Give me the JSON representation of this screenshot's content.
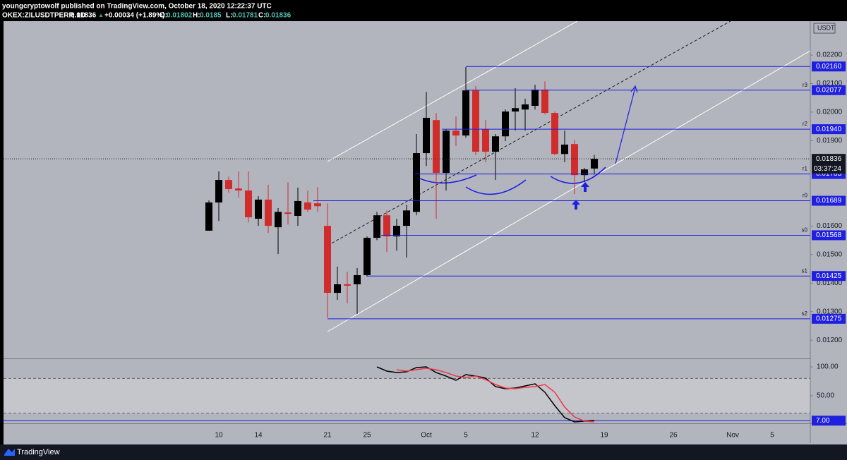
{
  "header": {
    "publisher": "youngcryptowolf published on TradingView.com, October 18, 2020 12:22:37 UTC",
    "symbol": "OKEX:ZILUSDTPERP, 1D",
    "change": "+0.00034 (+1.89%)",
    "ohlc_labels": [
      "O:",
      "H:",
      "L:",
      "C:"
    ]
  },
  "footer": {
    "brand": "TradingView"
  },
  "chart_data": [
    {
      "type": "candlestick",
      "currency": "USDT",
      "countdown": "03:37:24",
      "x": [
        "2020-09-09",
        "2020-09-10",
        "2020-09-11",
        "2020-09-12",
        "2020-09-13",
        "2020-09-14",
        "2020-09-15",
        "2020-09-16",
        "2020-09-17",
        "2020-09-18",
        "2020-09-19",
        "2020-09-20",
        "2020-09-21",
        "2020-09-22",
        "2020-09-23",
        "2020-09-24",
        "2020-09-25",
        "2020-09-26",
        "2020-09-27",
        "2020-09-28",
        "2020-09-29",
        "2020-09-30",
        "2020-10-01",
        "2020-10-02",
        "2020-10-03",
        "2020-10-04",
        "2020-10-05",
        "2020-10-06",
        "2020-10-07",
        "2020-10-08",
        "2020-10-09",
        "2020-10-10",
        "2020-10-11",
        "2020-10-12",
        "2020-10-13",
        "2020-10-14",
        "2020-10-15",
        "2020-10-16",
        "2020-10-17",
        "2020-10-18"
      ],
      "open": [
        0.01584,
        0.01683,
        0.01762,
        0.01732,
        0.01725,
        0.01626,
        0.01693,
        0.01596,
        0.01648,
        0.01636,
        0.01683,
        0.0168,
        0.01601,
        0.01366,
        0.01396,
        0.01396,
        0.01428,
        0.01559,
        0.01638,
        0.01564,
        0.01601,
        0.0165,
        0.01856,
        0.01972,
        0.01787,
        0.01935,
        0.01918,
        0.02076,
        0.0194,
        0.01861,
        0.01915,
        0.02002,
        0.02009,
        0.02022,
        0.02079,
        0.01997,
        0.01853,
        0.01888,
        0.01779,
        0.01802
      ],
      "high": [
        0.0169,
        0.01792,
        0.01774,
        0.01792,
        0.01792,
        0.01705,
        0.01745,
        0.01663,
        0.01754,
        0.01735,
        0.01725,
        0.01737,
        0.0168,
        0.01458,
        0.0144,
        0.01453,
        0.01564,
        0.0165,
        0.01655,
        0.01626,
        0.01675,
        0.01923,
        0.02071,
        0.01997,
        0.0194,
        0.01985,
        0.02158,
        0.02091,
        0.01972,
        0.01923,
        0.02009,
        0.02084,
        0.02047,
        0.02096,
        0.02108,
        0.02002,
        0.01935,
        0.01903,
        0.01804,
        0.0185
      ],
      "low": [
        0.01584,
        0.01618,
        0.01717,
        0.017,
        0.01613,
        0.01601,
        0.01576,
        0.01502,
        0.01606,
        0.01601,
        0.0165,
        0.0165,
        0.01279,
        0.01341,
        0.01329,
        0.01292,
        0.01423,
        0.01551,
        0.01509,
        0.01514,
        0.0149,
        0.01638,
        0.01811,
        0.01626,
        0.01725,
        0.01881,
        0.0191,
        0.01849,
        0.01824,
        0.01762,
        0.01898,
        0.01935,
        0.01935,
        0.02009,
        0.01992,
        0.01849,
        0.01824,
        0.01712,
        0.01754,
        0.01781
      ],
      "close": [
        0.01683,
        0.01762,
        0.0173,
        0.01725,
        0.01631,
        0.01693,
        0.01601,
        0.0165,
        0.01643,
        0.01688,
        0.01658,
        0.0167,
        0.01366,
        0.01396,
        0.01391,
        0.01428,
        0.01559,
        0.01638,
        0.01564,
        0.01601,
        0.01655,
        0.01856,
        0.0198,
        0.01787,
        0.01935,
        0.01918,
        0.02076,
        0.01861,
        0.01861,
        0.01915,
        0.02002,
        0.02014,
        0.02027,
        0.02079,
        0.01997,
        0.01853,
        0.01886,
        0.01779,
        0.01799,
        0.01836
      ],
      "up_color": "#000000",
      "down_color": "#d12c2c",
      "xlim": [
        "2020-08-19",
        "2020-11-09"
      ],
      "xticks": [
        {
          "value": "2020-09-10",
          "label": "10"
        },
        {
          "value": "2020-09-14",
          "label": "14"
        },
        {
          "value": "2020-09-21",
          "label": "21"
        },
        {
          "value": "2020-09-25",
          "label": "25"
        },
        {
          "value": "2020-10-01",
          "label": "Oct"
        },
        {
          "value": "2020-10-05",
          "label": "5"
        },
        {
          "value": "2020-10-12",
          "label": "12"
        },
        {
          "value": "2020-10-19",
          "label": "19"
        },
        {
          "value": "2020-10-26",
          "label": "26"
        },
        {
          "value": "2020-11-01",
          "label": "Nov"
        },
        {
          "value": "2020-11-05",
          "label": "5"
        }
      ],
      "ylim": [
        0.01136,
        0.02319
      ],
      "yticks": [
        {
          "value": 0.022,
          "label": "0.02200"
        },
        {
          "value": 0.021,
          "label": "0.02100"
        },
        {
          "value": 0.02,
          "label": "0.02000"
        },
        {
          "value": 0.019,
          "label": "0.01900"
        },
        {
          "value": 0.016,
          "label": "0.01600"
        },
        {
          "value": 0.015,
          "label": "0.01500"
        },
        {
          "value": 0.014,
          "label": "0.01400"
        },
        {
          "value": 0.013,
          "label": "0.01300"
        },
        {
          "value": 0.012,
          "label": "0.01200"
        }
      ],
      "level_color": "#1f1fe0",
      "levels": [
        {
          "value": 0.0216,
          "label": "0.02160"
        },
        {
          "name": "r3",
          "value": 0.02077
        },
        {
          "name": "r2",
          "value": 0.0194,
          "label": "0.01940"
        },
        {
          "name": "r1",
          "value": 0.01783
        },
        {
          "name": "r0",
          "value": 0.01689
        },
        {
          "name": "s0",
          "value": 0.01568
        },
        {
          "name": "s1",
          "value": 0.01425
        },
        {
          "name": "s2",
          "value": 0.01275
        }
      ]
    },
    {
      "type": "line",
      "x": [
        "2020-09-26",
        "2020-09-27",
        "2020-09-28",
        "2020-09-29",
        "2020-09-30",
        "2020-10-01",
        "2020-10-02",
        "2020-10-03",
        "2020-10-04",
        "2020-10-05",
        "2020-10-06",
        "2020-10-07",
        "2020-10-08",
        "2020-10-09",
        "2020-10-10",
        "2020-10-11",
        "2020-10-12",
        "2020-10-13",
        "2020-10-14",
        "2020-10-15",
        "2020-10-16",
        "2020-10-17",
        "2020-10-18"
      ],
      "series": [
        {
          "color": "#000000",
          "values": [
            100,
            92.7,
            90.2,
            91.5,
            98.8,
            100,
            90.2,
            84.1,
            76.8,
            86.6,
            84.1,
            80.5,
            65.9,
            62.2,
            63.4,
            67.1,
            70.7,
            56.1,
            32.9,
            12.2,
            4.9,
            6.1,
            7.3
          ]
        },
        {
          "color": "#f23645",
          "values": [
            null,
            null,
            95.1,
            92.7,
            95.1,
            97.6,
            95.1,
            90.2,
            84.1,
            81.7,
            84.1,
            78.0,
            69.5,
            63.4,
            62.2,
            64.6,
            65.9,
            69.5,
            56.1,
            30.5,
            13.4,
            6.1,
            4.9
          ]
        }
      ],
      "ylim": [
        2.4,
        112.2
      ],
      "yticks": [
        {
          "value": 100,
          "label": "100.00"
        },
        {
          "value": 50,
          "label": "50.00"
        }
      ],
      "band": [
        20,
        80
      ],
      "hline": {
        "value": 7,
        "label": "7.00",
        "color": "#1f1fe0"
      }
    }
  ]
}
